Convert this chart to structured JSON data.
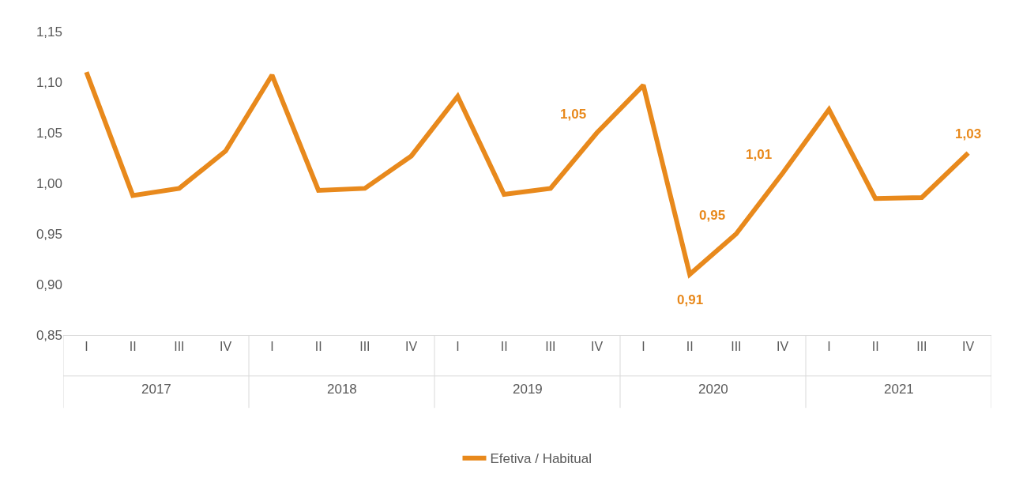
{
  "chart_data": {
    "type": "line",
    "categories": [
      "I",
      "II",
      "III",
      "IV",
      "I",
      "II",
      "III",
      "IV",
      "I",
      "II",
      "III",
      "IV",
      "I",
      "II",
      "III",
      "IV",
      "I",
      "II",
      "III",
      "IV"
    ],
    "series": [
      {
        "name": "Efetiva / Habitual",
        "color": "#e8891c",
        "values": [
          1.11,
          0.988,
          0.995,
          1.032,
          1.107,
          0.993,
          0.995,
          1.027,
          1.086,
          0.989,
          0.995,
          1.05,
          1.097,
          0.91,
          0.95,
          1.01,
          1.073,
          0.985,
          0.986,
          1.03
        ],
        "value_labels": [
          null,
          null,
          null,
          null,
          null,
          null,
          null,
          null,
          null,
          null,
          null,
          "1,05",
          null,
          "0,91",
          "0,95",
          "1,01",
          null,
          null,
          null,
          "1,03"
        ]
      }
    ],
    "annotations": [
      "2017",
      "2018",
      "2019",
      "2020",
      "2021"
    ],
    "ylim": [
      0.85,
      1.15
    ],
    "yticks": [
      {
        "value": 0.85,
        "label": "0,85"
      },
      {
        "value": 0.9,
        "label": "0,90"
      },
      {
        "value": 0.95,
        "label": "0,95"
      },
      {
        "value": 1.0,
        "label": "1,00"
      },
      {
        "value": 1.05,
        "label": "1,05"
      },
      {
        "value": 1.1,
        "label": "1,10"
      },
      {
        "value": 1.15,
        "label": "1,15"
      }
    ],
    "legend": "bottom",
    "marker": "none",
    "line_style": "solid"
  }
}
